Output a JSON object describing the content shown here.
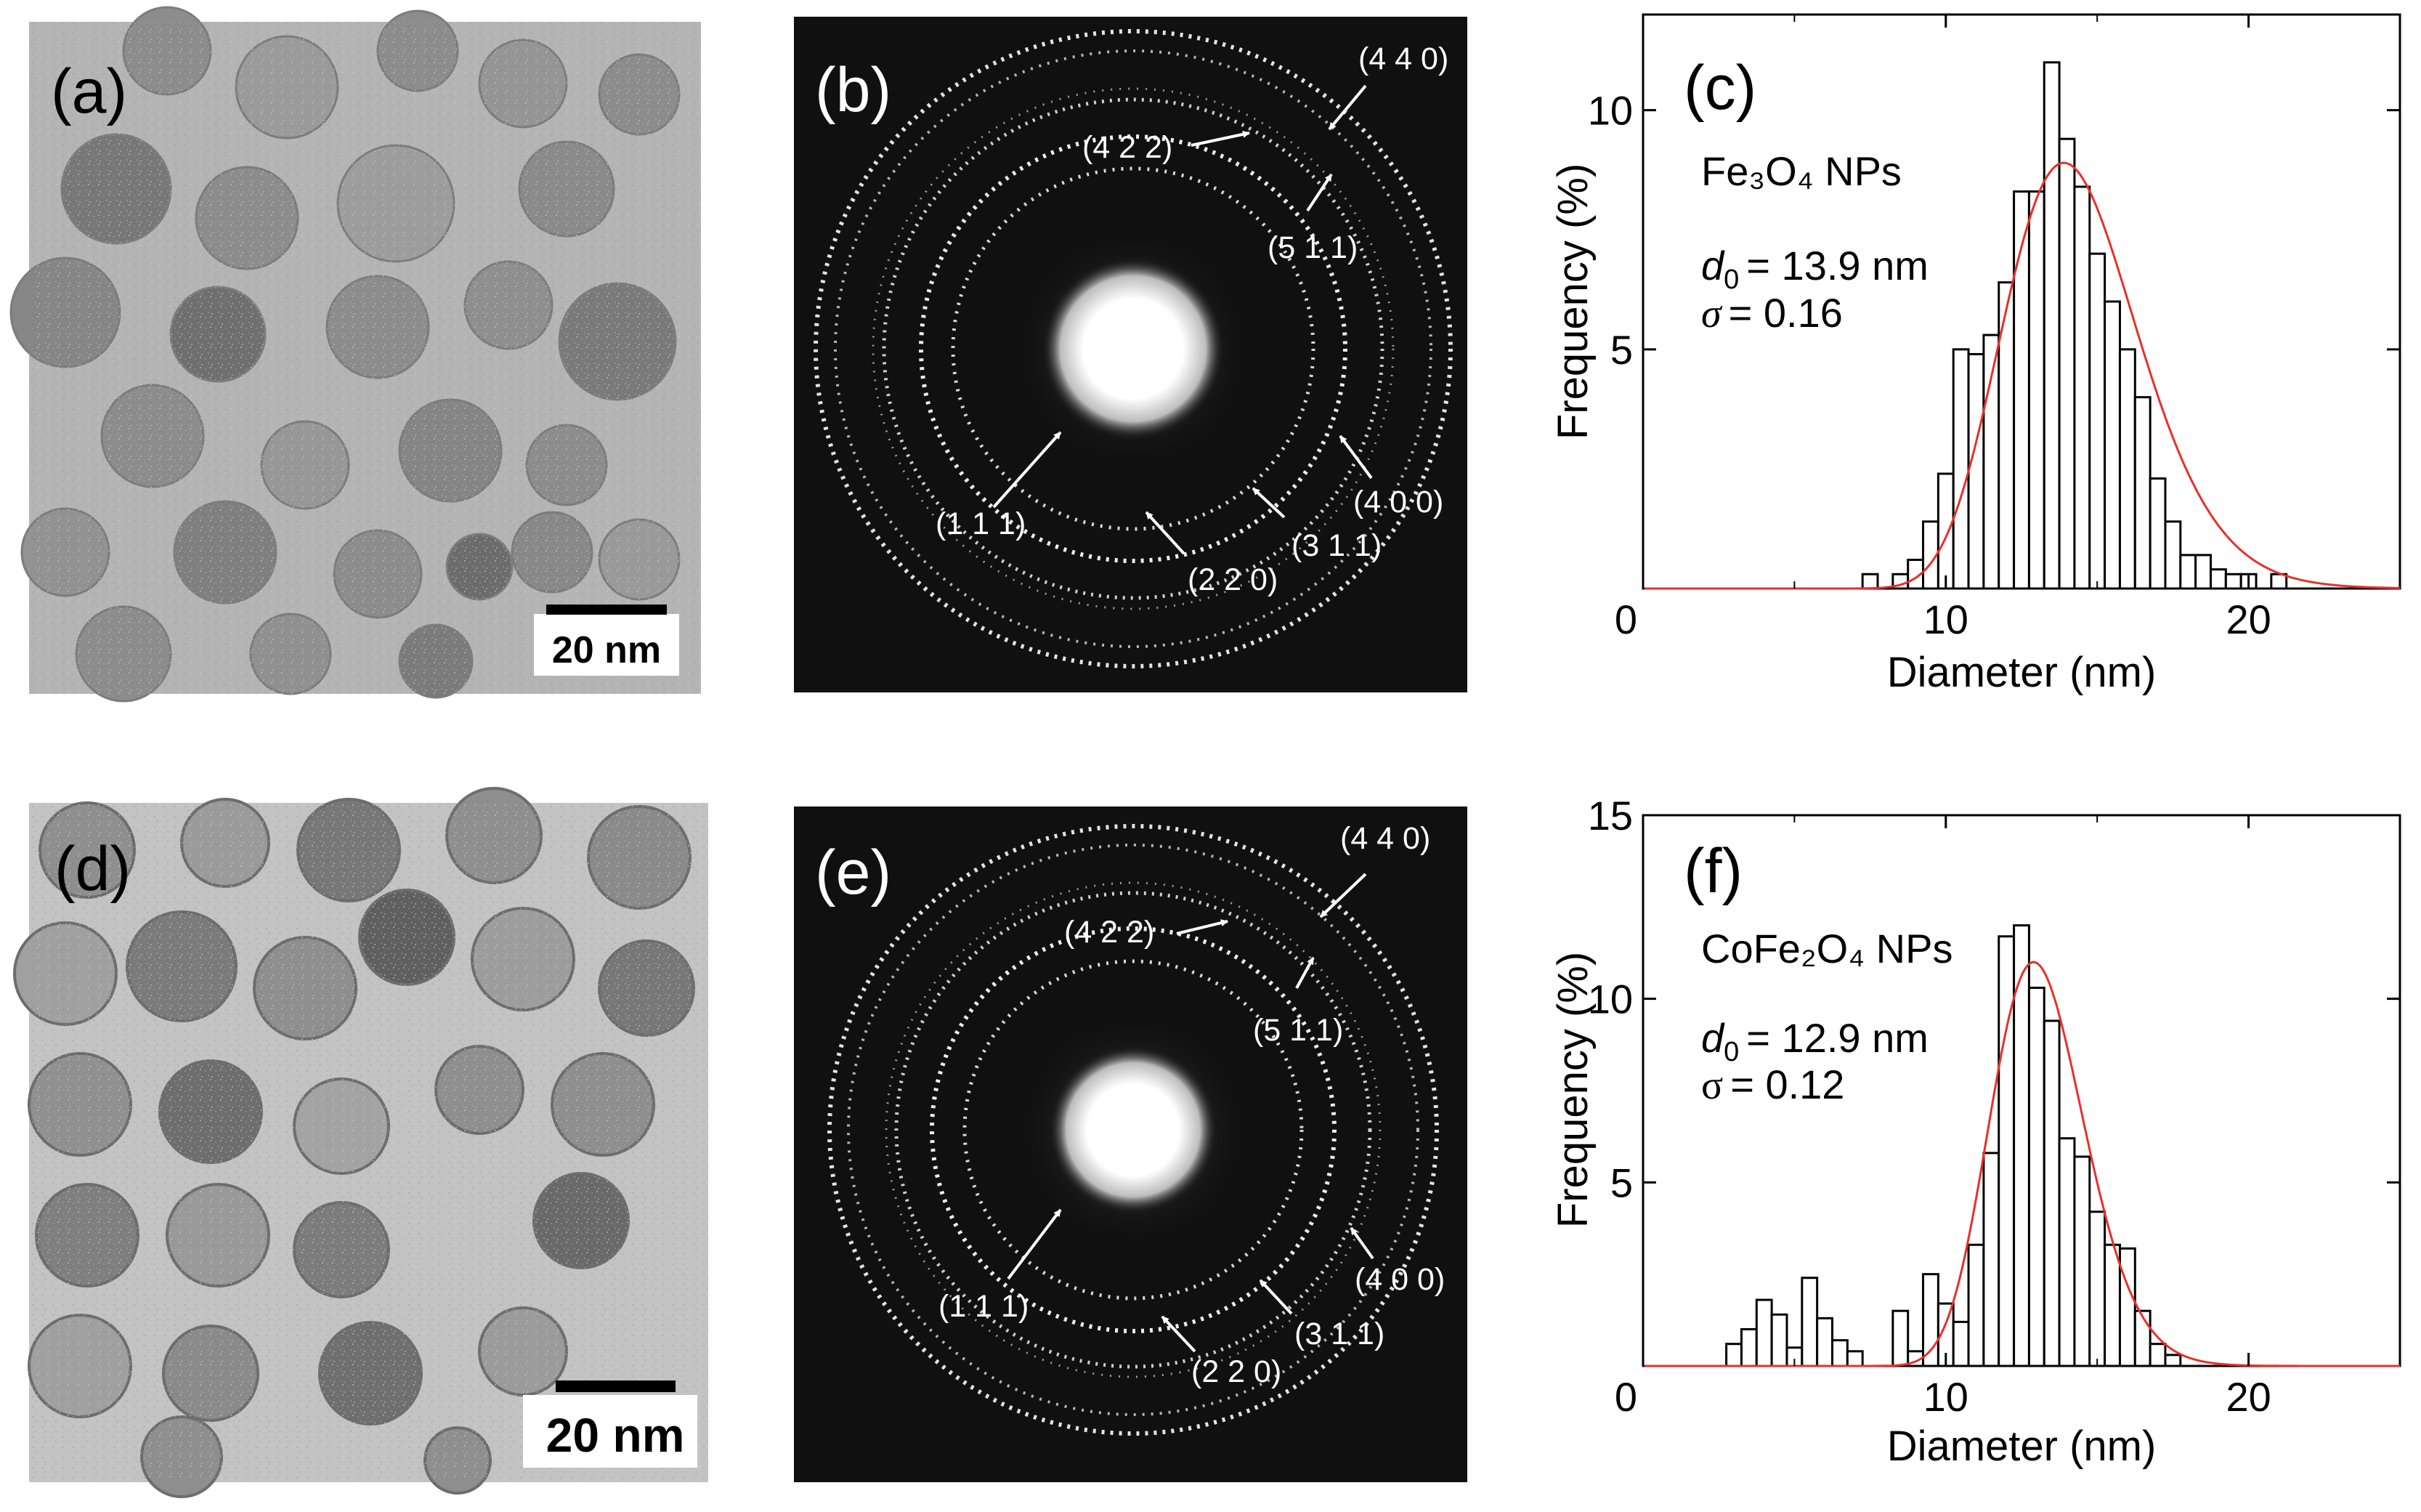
{
  "panels": {
    "a": {
      "letter": "(a)",
      "scale_label": "20 nm"
    },
    "b": {
      "letter": "(b)",
      "indices": [
        "(1 1 1)",
        "(2 2 0)",
        "(3 1 1)",
        "(4 0 0)",
        "(4 2 2)",
        "(5 1 1)",
        "(4 4 0)"
      ]
    },
    "c": {
      "letter": "(c)",
      "sample": "Fe₃O₄ NPs",
      "d0": "= 13.9 nm",
      "sigma": "= 0.16"
    },
    "d": {
      "letter": "(d)",
      "scale_label": "20 nm"
    },
    "e": {
      "letter": "(e)",
      "indices": [
        "(1 1 1)",
        "(2 2 0)",
        "(3 1 1)",
        "(4 0 0)",
        "(4 2 2)",
        "(5 1 1)",
        "(4 4 0)"
      ]
    },
    "f": {
      "letter": "(f)",
      "sample": "CoFe₂O₄ NPs",
      "d0": "= 12.9 nm",
      "sigma": "=  0.12"
    }
  },
  "colors": {
    "fit": "#e8302a",
    "bars": "#000000",
    "tem_bg": "#b4b4b4",
    "saed_bg": "#101010"
  },
  "chart_data": [
    {
      "type": "bar",
      "panel": "c",
      "title": "Fe3O4 NPs",
      "xlabel": "Diameter (nm)",
      "ylabel": "Frequency (%)",
      "xlim": [
        0,
        25
      ],
      "ylim": [
        0,
        12
      ],
      "x_ticks": [
        "0",
        "10",
        "20"
      ],
      "y_ticks": [
        "5",
        "10"
      ],
      "bin_width": 0.5,
      "x": [
        7.5,
        8.5,
        9,
        9.5,
        10,
        10.5,
        11,
        11.5,
        12,
        12.5,
        13,
        13.5,
        14,
        14.5,
        15,
        15.5,
        16,
        16.5,
        17,
        17.5,
        18,
        18.5,
        19,
        19.5,
        20,
        21
      ],
      "values": [
        0.3,
        0.3,
        0.6,
        1.4,
        2.4,
        5.0,
        4.9,
        5.3,
        6.4,
        8.3,
        8.3,
        11.0,
        9.4,
        8.4,
        7.0,
        6.0,
        5.0,
        4.0,
        2.3,
        1.4,
        0.7,
        0.7,
        0.4,
        0.3,
        0.3,
        0.3
      ],
      "fit": {
        "type": "lognormal",
        "d0": 13.9,
        "sigma": 0.16,
        "peak": 8.9
      }
    },
    {
      "type": "bar",
      "panel": "f",
      "title": "CoFe2O4 NPs",
      "xlabel": "Diameter (nm)",
      "ylabel": "Frequency (%)",
      "xlim": [
        0,
        25
      ],
      "ylim": [
        0,
        15
      ],
      "x_ticks": [
        "0",
        "10",
        "20"
      ],
      "y_ticks": [
        "5",
        "10",
        "15"
      ],
      "bin_width": 0.5,
      "x": [
        3,
        3.5,
        4,
        4.5,
        5,
        5.5,
        6,
        6.5,
        7,
        8.5,
        9,
        9.5,
        10,
        10.5,
        11,
        11.5,
        12,
        12.5,
        13,
        13.5,
        14,
        14.5,
        15,
        15.5,
        16,
        16.5,
        17,
        17.5
      ],
      "values": [
        0.6,
        1.0,
        1.8,
        1.4,
        0.5,
        2.4,
        1.3,
        0.7,
        0.4,
        1.5,
        0.4,
        2.5,
        1.7,
        1.2,
        3.3,
        5.8,
        11.7,
        12.0,
        10.3,
        9.4,
        6.2,
        5.7,
        4.2,
        3.3,
        3.2,
        1.5,
        0.6,
        0.3
      ],
      "fit": {
        "type": "lognormal",
        "d0": 12.9,
        "sigma": 0.12,
        "peak": 11.0
      }
    }
  ]
}
